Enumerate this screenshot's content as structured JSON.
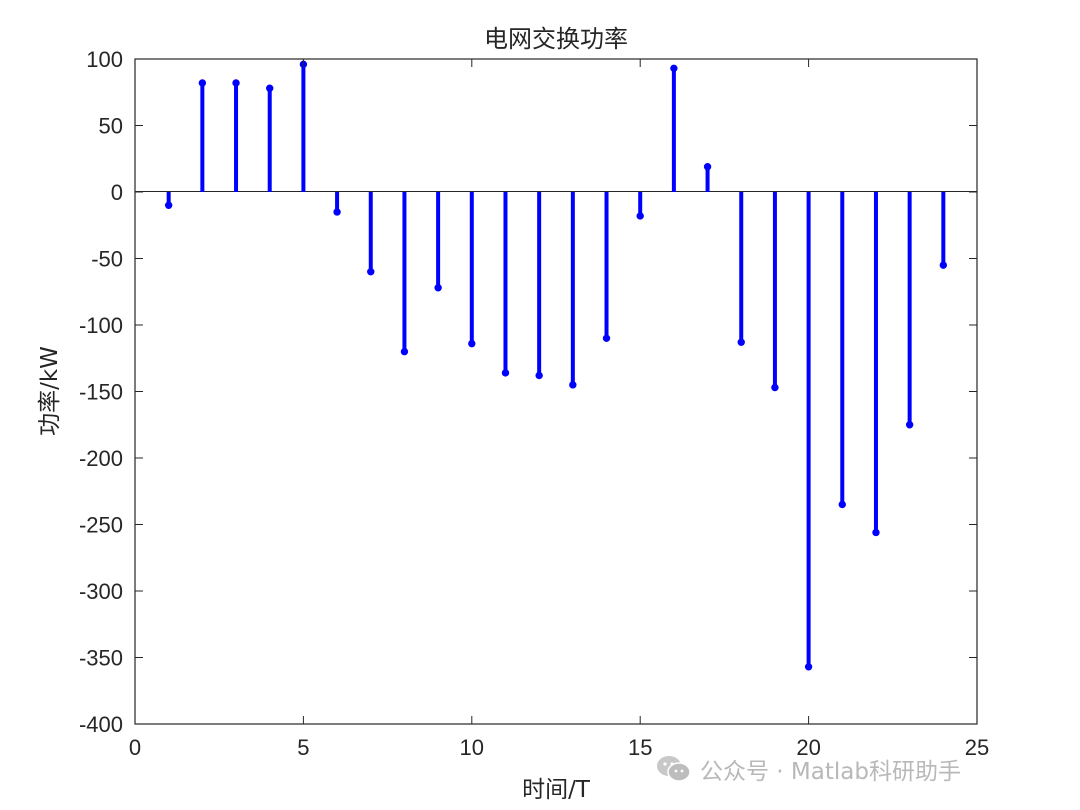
{
  "chart_data": {
    "type": "stem",
    "title": "电网交换功率",
    "xlabel": "时间/T",
    "ylabel": "功率/kW",
    "xlim": [
      0,
      25
    ],
    "ylim": [
      -400,
      100
    ],
    "xticks": [
      0,
      5,
      10,
      15,
      20,
      25
    ],
    "yticks": [
      100,
      50,
      0,
      -50,
      -100,
      -150,
      -200,
      -250,
      -300,
      -350,
      -400
    ],
    "grid": false,
    "color": "#0000ff",
    "series": [
      {
        "x": [
          1,
          2,
          3,
          4,
          5,
          6,
          7,
          8,
          9,
          10,
          11,
          12,
          13,
          14,
          15,
          16,
          17,
          18,
          19,
          20,
          21,
          22,
          23,
          24
        ],
        "values": [
          -10,
          82,
          82,
          78,
          96,
          -15,
          -60,
          -120,
          -72,
          -114,
          -136,
          -138,
          -145,
          -110,
          -18,
          93,
          19,
          -113,
          -147,
          -357,
          -235,
          -256,
          -175,
          -55
        ]
      }
    ]
  },
  "watermark": {
    "icon": "wechat-icon",
    "text": "公众号 · Matlab科研助手"
  }
}
